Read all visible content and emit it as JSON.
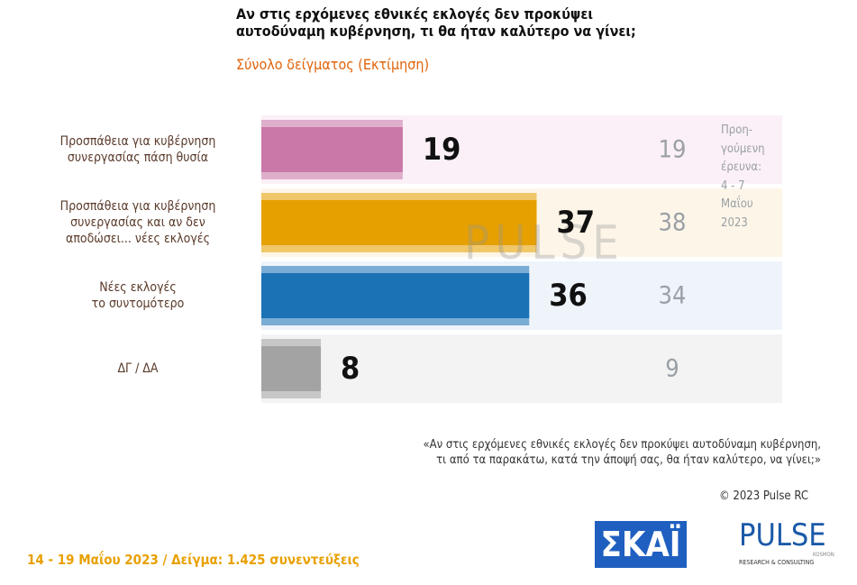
{
  "chart_data": {
    "type": "bar",
    "orientation": "horizontal",
    "title": "Αν στις ερχόμενες εθνικές εκλογές δεν προκύψει\nαυτοδύναμη κυβέρνηση, τι θα ήταν καλύτερο να γίνει;",
    "subtitle": "Σύνολο δείγματος   (Εκτίμηση)",
    "categories": [
      "Προσπάθεια για κυβέρνηση\nσυνεργασίας πάση θυσία",
      "Προσπάθεια για κυβέρνηση\nσυνεργασίας και αν δεν\nαποδώσει... νέες εκλογές",
      "Νέες εκλογές\nτο συντομότερο",
      "ΔΓ / ΔΑ"
    ],
    "colors": [
      "#c978a8",
      "#e6a000",
      "#1b72b5",
      "#a3a3a3"
    ],
    "row_backgrounds": [
      "#fbf0f7",
      "#fdf6e8",
      "#eef4fa",
      "#f3f3f3"
    ],
    "series": [
      {
        "name": "Εκτίμηση",
        "values": [
          19,
          37,
          36,
          8
        ]
      },
      {
        "name": "Προηγούμενη έρευνα",
        "values": [
          19,
          38,
          34,
          9
        ]
      }
    ],
    "previous_note": "Προη-\nγούμενη\nέρευνα:\n4 - 7\nΜαΐου\n2023",
    "xlim": [
      0,
      70
    ],
    "question": "«Αν στις ερχόμενες εθνικές εκλογές δεν προκύψει αυτοδύναμη κυβέρνηση,\nτι από τα παρακάτω, κατά την άποψή σας, θα ήταν καλύτερο, να γίνει;»",
    "copyright": "© 2023 Pulse RC",
    "footer": "14 - 19  Μαΐου  2023  /  Δείγμα:  1.425 συνεντεύξεις",
    "watermark": "PULSE",
    "logos": {
      "skai": "ΣΚΑΪ",
      "pulse": "PULSE",
      "pulse_sub": "RESEARCH & CONSULTING",
      "kosmon": "KOSMON"
    }
  }
}
